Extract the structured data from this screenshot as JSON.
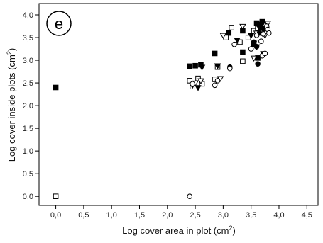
{
  "chart_data": {
    "type": "scatter",
    "panel_label": "e",
    "xlabel": "Log cover area in plot (cm",
    "xlabel_sup": "2",
    "xlabel_end": ")",
    "ylabel": "Log cover inside plots (cm",
    "ylabel_sup": "2",
    "ylabel_end": ")",
    "xlim": [
      -0.3,
      4.7
    ],
    "ylim": [
      -0.2,
      4.25
    ],
    "x_ticks": [
      0.0,
      0.5,
      1.0,
      1.5,
      2.0,
      2.5,
      3.0,
      3.5,
      4.0,
      4.5
    ],
    "x_tick_labels": [
      "0,0",
      "0,5",
      "1,0",
      "1,5",
      "2,0",
      "2,5",
      "3,0",
      "3,5",
      "4,0",
      "4,5"
    ],
    "y_ticks": [
      0.0,
      0.5,
      1.0,
      1.5,
      2.0,
      2.5,
      3.0,
      3.5,
      4.0
    ],
    "y_tick_labels": [
      "0,0",
      "0,5",
      "1,0",
      "1,5",
      "2,0",
      "2,5",
      "3,0",
      "3,5",
      "4,0"
    ],
    "grid": false,
    "legend": "none",
    "series": [
      {
        "marker": "filled-square",
        "points": [
          [
            0.0,
            2.4
          ],
          [
            2.4,
            2.87
          ],
          [
            2.5,
            2.88
          ],
          [
            2.6,
            2.9
          ],
          [
            2.85,
            3.15
          ],
          [
            3.1,
            3.6
          ],
          [
            3.35,
            3.65
          ],
          [
            3.35,
            3.18
          ],
          [
            3.55,
            3.35
          ],
          [
            3.6,
            3.82
          ],
          [
            3.65,
            3.78
          ],
          [
            3.7,
            3.85
          ],
          [
            3.75,
            3.72
          ],
          [
            3.62,
            3.05
          ]
        ]
      },
      {
        "marker": "open-square",
        "points": [
          [
            0.0,
            0.0
          ],
          [
            2.4,
            2.55
          ],
          [
            2.45,
            2.42
          ],
          [
            2.55,
            2.6
          ],
          [
            2.62,
            2.48
          ],
          [
            2.85,
            2.58
          ],
          [
            2.9,
            2.85
          ],
          [
            3.05,
            3.5
          ],
          [
            3.15,
            3.72
          ],
          [
            3.3,
            3.4
          ],
          [
            3.35,
            2.98
          ],
          [
            3.45,
            3.5
          ],
          [
            3.55,
            3.65
          ],
          [
            3.62,
            3.7
          ],
          [
            3.68,
            3.62
          ],
          [
            3.72,
            3.8
          ]
        ]
      },
      {
        "marker": "filled-triangle-down",
        "points": [
          [
            2.45,
            2.45
          ],
          [
            2.55,
            2.4
          ],
          [
            2.62,
            2.85
          ],
          [
            2.9,
            2.88
          ],
          [
            3.25,
            3.45
          ],
          [
            3.5,
            3.55
          ],
          [
            3.55,
            3.38
          ],
          [
            3.6,
            3.3
          ],
          [
            3.65,
            3.72
          ],
          [
            3.72,
            3.15
          ],
          [
            3.7,
            3.8
          ]
        ]
      },
      {
        "marker": "open-triangle-down",
        "points": [
          [
            2.5,
            2.5
          ],
          [
            2.6,
            2.55
          ],
          [
            2.95,
            2.6
          ],
          [
            3.0,
            3.55
          ],
          [
            3.35,
            3.75
          ],
          [
            3.55,
            3.05
          ],
          [
            3.6,
            3.6
          ],
          [
            3.7,
            3.6
          ],
          [
            3.8,
            3.82
          ],
          [
            3.75,
            3.55
          ]
        ]
      },
      {
        "marker": "filled-circle",
        "points": [
          [
            3.12,
            2.85
          ],
          [
            3.55,
            3.4
          ],
          [
            3.62,
            2.92
          ],
          [
            3.65,
            3.6
          ],
          [
            3.72,
            3.7
          ],
          [
            3.6,
            3.3
          ]
        ]
      },
      {
        "marker": "open-circle",
        "points": [
          [
            2.4,
            0.0
          ],
          [
            2.45,
            2.48
          ],
          [
            2.85,
            2.45
          ],
          [
            2.9,
            2.55
          ],
          [
            3.12,
            2.82
          ],
          [
            3.2,
            3.35
          ],
          [
            3.5,
            3.25
          ],
          [
            3.6,
            3.55
          ],
          [
            3.7,
            3.1
          ],
          [
            3.72,
            3.58
          ],
          [
            3.78,
            3.75
          ],
          [
            3.8,
            3.68
          ],
          [
            3.82,
            3.6
          ],
          [
            3.68,
            3.42
          ],
          [
            3.75,
            3.15
          ]
        ]
      }
    ]
  }
}
